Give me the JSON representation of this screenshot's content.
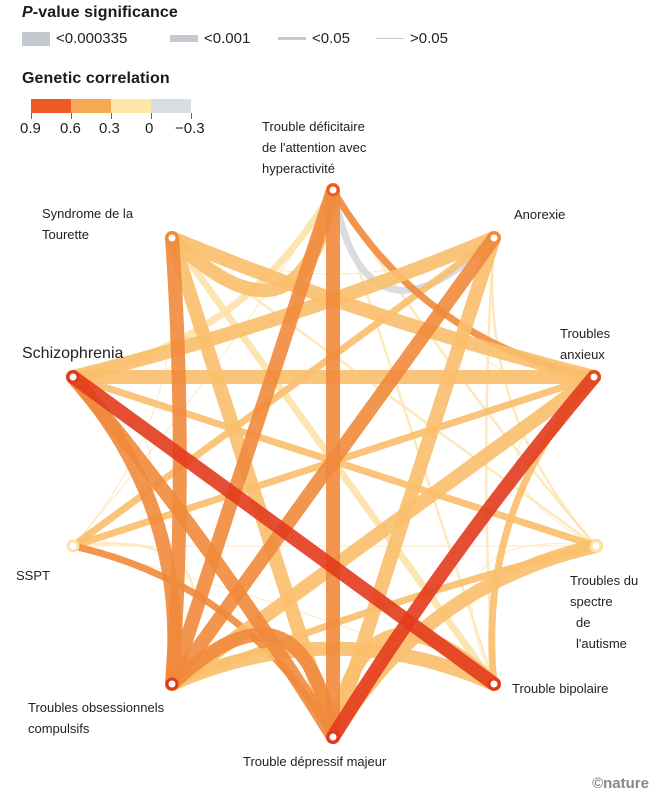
{
  "legend": {
    "pvalue_title_italic": "P",
    "pvalue_title_rest": "-value significance",
    "pvalue_items": [
      {
        "label": "<0.000335",
        "width": 14
      },
      {
        "label": "<0.001",
        "width": 7
      },
      {
        "label": "<0.05",
        "width": 3
      },
      {
        "label": ">0.05",
        "width": 1
      }
    ],
    "corr_title": "Genetic correlation",
    "corr_colors": [
      "#ee5a24",
      "#f7a852",
      "#fde6a8",
      "#d8dde2"
    ],
    "corr_ticks": [
      "0.9",
      "0.6",
      "0.3",
      "0",
      "−0.3"
    ]
  },
  "nodes": [
    {
      "id": "adhd",
      "label_lines": [
        "Trouble déficitaire",
        "de l'attention avec",
        "hyperactivité"
      ],
      "color": "#ee5a24"
    },
    {
      "id": "anorexia",
      "label_lines": [
        "Anorexie"
      ],
      "color": "#f28c36"
    },
    {
      "id": "anxiety",
      "label_lines": [
        "Troubles",
        "anxieux"
      ],
      "color": "#e84a1f"
    },
    {
      "id": "autism",
      "label_lines": [
        "Troubles du",
        "spectre",
        "de",
        "l'autisme"
      ],
      "color": "#fde2a6"
    },
    {
      "id": "bipolar",
      "label_lines": [
        "Trouble bipolaire"
      ],
      "color": "#e03a1c"
    },
    {
      "id": "mdd",
      "label_lines": [
        "Trouble dépressif majeur"
      ],
      "color": "#e03a1c"
    },
    {
      "id": "ocd",
      "label_lines": [
        "Troubles obsessionnels",
        "compulsifs"
      ],
      "color": "#e03a1c"
    },
    {
      "id": "ptsd",
      "label_lines": [
        "SSPT"
      ],
      "color": "#fde2a6"
    },
    {
      "id": "schizophrenia",
      "label_lines": [
        "Schizophrenia"
      ],
      "color": "#e03a1c"
    },
    {
      "id": "tourette",
      "label_lines": [
        "Syndrome de la",
        "Tourette"
      ],
      "color": "#f28c36"
    }
  ],
  "links": [
    {
      "a": "adhd",
      "b": "mdd",
      "r": 0.6,
      "sig": 4
    },
    {
      "a": "adhd",
      "b": "ocd",
      "r": 0.5,
      "sig": 4
    },
    {
      "a": "adhd",
      "b": "tourette",
      "r": 0.3,
      "sig": 4
    },
    {
      "a": "adhd",
      "b": "schizophrenia",
      "r": 0.2,
      "sig": 3
    },
    {
      "a": "adhd",
      "b": "anxiety",
      "r": 0.5,
      "sig": 3
    },
    {
      "a": "adhd",
      "b": "anorexia",
      "r": -0.1,
      "sig": 3
    },
    {
      "a": "adhd",
      "b": "bipolar",
      "r": 0.2,
      "sig": 2
    },
    {
      "a": "adhd",
      "b": "autism",
      "r": 0.2,
      "sig": 2
    },
    {
      "a": "adhd",
      "b": "ptsd",
      "r": 0.1,
      "sig": 1
    },
    {
      "a": "schizophrenia",
      "b": "bipolar",
      "r": 0.85,
      "sig": 4
    },
    {
      "a": "schizophrenia",
      "b": "mdd",
      "r": 0.55,
      "sig": 4
    },
    {
      "a": "schizophrenia",
      "b": "ocd",
      "r": 0.55,
      "sig": 4
    },
    {
      "a": "schizophrenia",
      "b": "anorexia",
      "r": 0.3,
      "sig": 4
    },
    {
      "a": "schizophrenia",
      "b": "anxiety",
      "r": 0.25,
      "sig": 4
    },
    {
      "a": "schizophrenia",
      "b": "autism",
      "r": 0.3,
      "sig": 3
    },
    {
      "a": "schizophrenia",
      "b": "tourette",
      "r": 0.1,
      "sig": 1
    },
    {
      "a": "schizophrenia",
      "b": "ptsd",
      "r": 0.1,
      "sig": 1
    },
    {
      "a": "anxiety",
      "b": "mdd",
      "r": 0.85,
      "sig": 4
    },
    {
      "a": "anxiety",
      "b": "ocd",
      "r": 0.3,
      "sig": 4
    },
    {
      "a": "anxiety",
      "b": "tourette",
      "r": 0.3,
      "sig": 4
    },
    {
      "a": "anxiety",
      "b": "ptsd",
      "r": 0.3,
      "sig": 3
    },
    {
      "a": "anxiety",
      "b": "bipolar",
      "r": 0.25,
      "sig": 3
    },
    {
      "a": "anxiety",
      "b": "autism",
      "r": 0.1,
      "sig": 1
    },
    {
      "a": "anxiety",
      "b": "anorexia",
      "r": 0.2,
      "sig": 1
    },
    {
      "a": "anorexia",
      "b": "ocd",
      "r": 0.55,
      "sig": 4
    },
    {
      "a": "anorexia",
      "b": "mdd",
      "r": 0.3,
      "sig": 4
    },
    {
      "a": "anorexia",
      "b": "ptsd",
      "r": 0.3,
      "sig": 3
    },
    {
      "a": "anorexia",
      "b": "autism",
      "r": 0.2,
      "sig": 2
    },
    {
      "a": "anorexia",
      "b": "bipolar",
      "r": 0.2,
      "sig": 2
    },
    {
      "a": "anorexia",
      "b": "tourette",
      "r": 0.1,
      "sig": 1
    },
    {
      "a": "mdd",
      "b": "ocd",
      "r": 0.5,
      "sig": 4
    },
    {
      "a": "mdd",
      "b": "bipolar",
      "r": 0.3,
      "sig": 4
    },
    {
      "a": "mdd",
      "b": "autism",
      "r": 0.3,
      "sig": 4
    },
    {
      "a": "mdd",
      "b": "tourette",
      "r": 0.25,
      "sig": 4
    },
    {
      "a": "mdd",
      "b": "ptsd",
      "r": 0.5,
      "sig": 3
    },
    {
      "a": "bipolar",
      "b": "ocd",
      "r": 0.3,
      "sig": 4
    },
    {
      "a": "bipolar",
      "b": "tourette",
      "r": 0.2,
      "sig": 3
    },
    {
      "a": "bipolar",
      "b": "autism",
      "r": 0.2,
      "sig": 1
    },
    {
      "a": "bipolar",
      "b": "ptsd",
      "r": 0.1,
      "sig": 1
    },
    {
      "a": "ocd",
      "b": "tourette",
      "r": 0.55,
      "sig": 4
    },
    {
      "a": "ocd",
      "b": "autism",
      "r": 0.3,
      "sig": 3
    },
    {
      "a": "ocd",
      "b": "ptsd",
      "r": 0.2,
      "sig": 2
    },
    {
      "a": "tourette",
      "b": "ptsd",
      "r": 0.1,
      "sig": 1
    },
    {
      "a": "tourette",
      "b": "autism",
      "r": 0.2,
      "sig": 2
    },
    {
      "a": "ptsd",
      "b": "autism",
      "r": 0.1,
      "sig": 1
    }
  ],
  "credit": "©nature"
}
